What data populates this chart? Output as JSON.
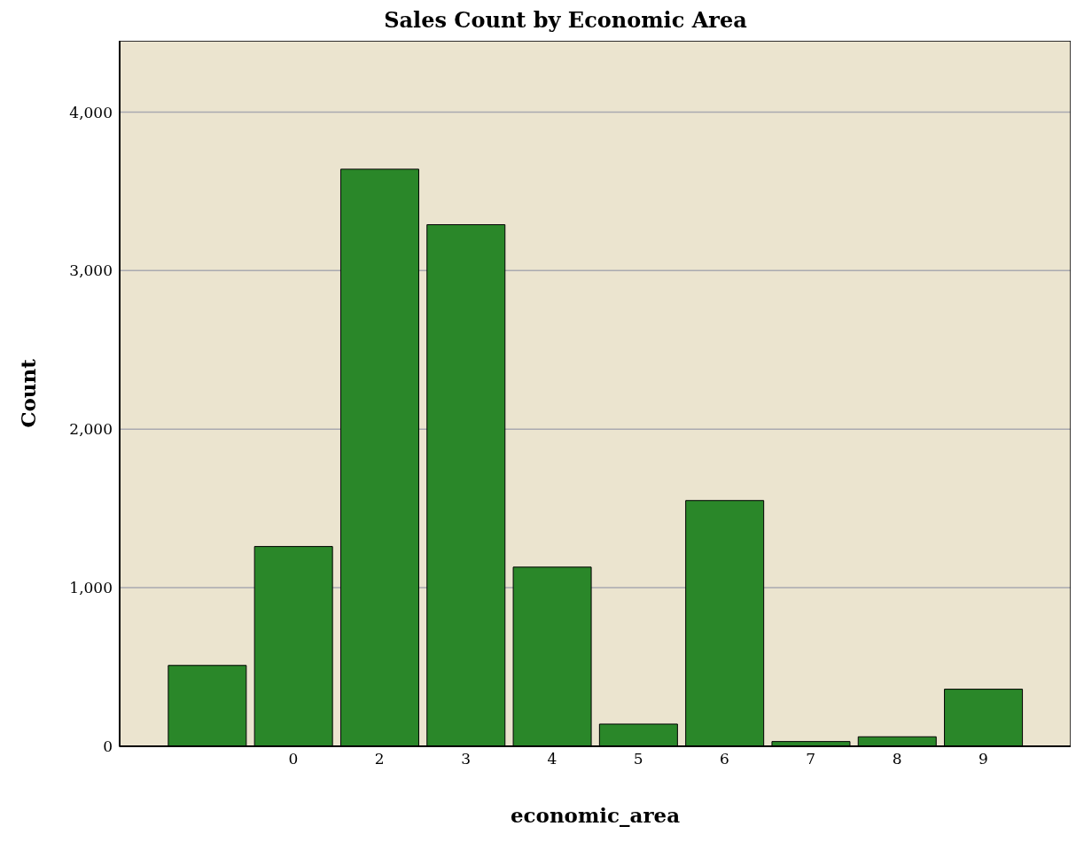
{
  "chart_data": {
    "type": "bar",
    "title": "Sales Count by Economic Area",
    "xlabel": "economic_area",
    "ylabel": "Count",
    "categories": [
      null,
      "0",
      "2",
      "3",
      "4",
      "5",
      "6",
      "7",
      "8",
      "9"
    ],
    "values": [
      510,
      1260,
      3640,
      3290,
      1130,
      140,
      1550,
      30,
      60,
      360
    ],
    "color": "#2a8729",
    "ylim": [
      0,
      4450
    ],
    "yticks": [
      0,
      {
        "value": 1000,
        "label": "1,000"
      },
      {
        "value": 2000,
        "label": "2,000"
      },
      {
        "value": 3000,
        "label": "3,000"
      },
      {
        "value": 4000,
        "label": "4,000"
      }
    ],
    "grid": "y"
  }
}
